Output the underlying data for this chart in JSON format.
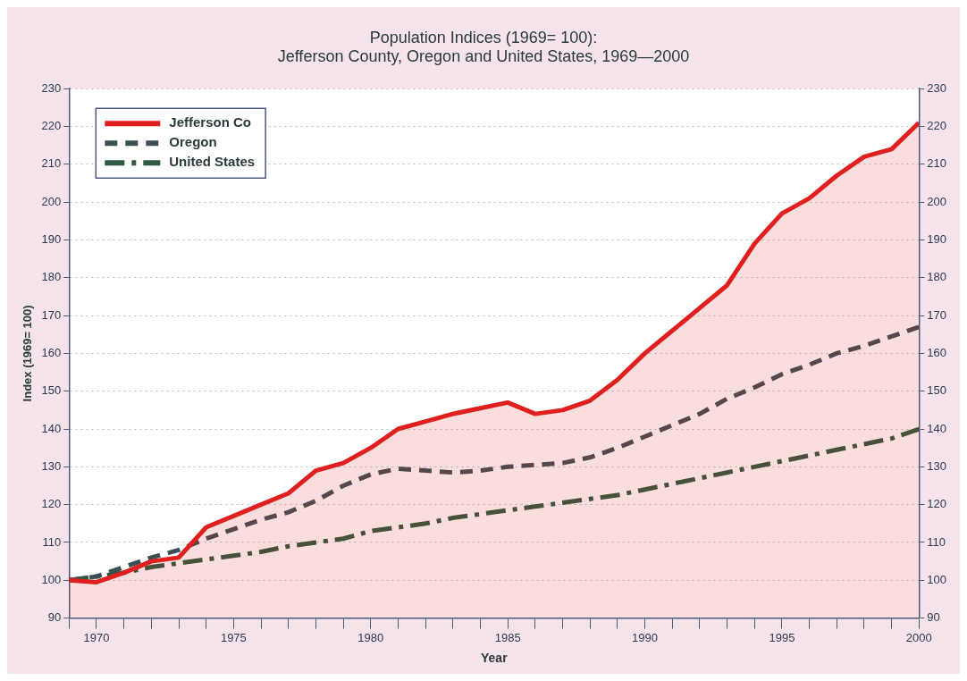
{
  "chart_data": {
    "type": "line",
    "title": "Population Indices (1969= 100):\nJefferson County, Oregon and United States, 1969—2000",
    "xlabel": "Year",
    "ylabel": "Index (1969= 100)",
    "x": [
      1969,
      1970,
      1971,
      1972,
      1973,
      1974,
      1975,
      1976,
      1977,
      1978,
      1979,
      1980,
      1981,
      1982,
      1983,
      1984,
      1985,
      1986,
      1987,
      1988,
      1989,
      1990,
      1991,
      1992,
      1993,
      1994,
      1995,
      1996,
      1997,
      1998,
      1999,
      2000
    ],
    "series": [
      {
        "name": "Jefferson Co",
        "type": "area",
        "color": "#e0201e",
        "line_style": "solid",
        "values": [
          100,
          99.5,
          102,
          105,
          106,
          114,
          117,
          120,
          123,
          129,
          131,
          135,
          140,
          142,
          144,
          145.5,
          147,
          144,
          145,
          147.5,
          153,
          160,
          166,
          172,
          178,
          189,
          197,
          201,
          207,
          212,
          214,
          221
        ]
      },
      {
        "name": "Oregon",
        "color": "#3c4f55",
        "line_style": "dashed",
        "values": [
          100,
          101,
          103.5,
          106,
          108,
          111,
          113.5,
          116,
          118,
          121,
          125,
          128,
          129.5,
          129,
          128.5,
          129,
          130,
          130.5,
          131,
          132.5,
          135,
          138,
          141,
          144,
          148,
          151,
          154.5,
          157,
          160,
          162,
          164.5,
          167
        ]
      },
      {
        "name": "United States",
        "color": "#2d5a40",
        "line_style": "dashdot",
        "values": [
          100,
          101,
          102,
          103.5,
          104.5,
          105.5,
          106.5,
          107.5,
          109,
          110,
          111,
          113,
          114,
          115,
          116.5,
          117.5,
          118.5,
          119.5,
          120.5,
          121.5,
          122.5,
          124,
          125.5,
          127,
          128.5,
          130,
          131.5,
          133,
          134.5,
          136,
          137.5,
          140
        ]
      }
    ],
    "xlim": [
      1969,
      2000
    ],
    "xticks": [
      {
        "value": 1969,
        "label": null
      },
      1970,
      {
        "value": 1971,
        "label": null
      },
      {
        "value": 1972,
        "label": null
      },
      {
        "value": 1973,
        "label": null
      },
      {
        "value": 1974,
        "label": null
      },
      1975,
      {
        "value": 1976,
        "label": null
      },
      {
        "value": 1977,
        "label": null
      },
      {
        "value": 1978,
        "label": null
      },
      {
        "value": 1979,
        "label": null
      },
      1980,
      {
        "value": 1981,
        "label": null
      },
      {
        "value": 1982,
        "label": null
      },
      {
        "value": 1983,
        "label": null
      },
      {
        "value": 1984,
        "label": null
      },
      1985,
      {
        "value": 1986,
        "label": null
      },
      {
        "value": 1987,
        "label": null
      },
      {
        "value": 1988,
        "label": null
      },
      {
        "value": 1989,
        "label": null
      },
      1990,
      {
        "value": 1991,
        "label": null
      },
      {
        "value": 1992,
        "label": null
      },
      {
        "value": 1993,
        "label": null
      },
      {
        "value": 1994,
        "label": null
      },
      1995,
      {
        "value": 1996,
        "label": null
      },
      {
        "value": 1997,
        "label": null
      },
      {
        "value": 1998,
        "label": null
      },
      {
        "value": 1999,
        "label": null
      },
      2000
    ],
    "ylim": [
      90,
      230
    ],
    "yticks": [
      90,
      100,
      110,
      120,
      130,
      140,
      150,
      160,
      170,
      180,
      190,
      200,
      210,
      220,
      230
    ],
    "y2lim": [
      90,
      230
    ],
    "y2ticks": [
      90,
      100,
      110,
      120,
      130,
      140,
      150,
      160,
      170,
      180,
      190,
      200,
      210,
      220,
      230
    ],
    "grid": "y",
    "legend": "top left"
  }
}
